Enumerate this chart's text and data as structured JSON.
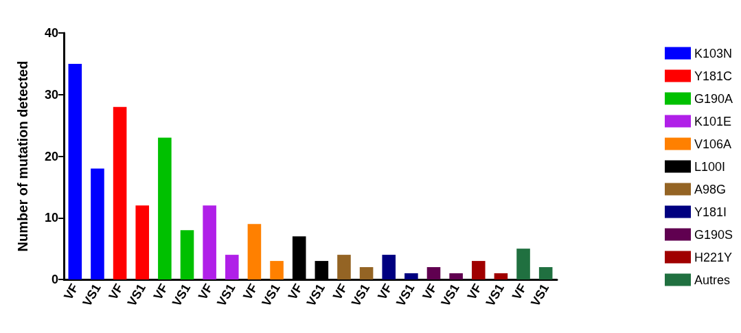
{
  "chart_data": {
    "type": "bar",
    "ylabel": "Number of mutation detected",
    "categories": [
      "VF",
      "VS1",
      "VF",
      "VS1",
      "VF",
      "VS1",
      "VF",
      "VS1",
      "VF",
      "VS1",
      "VF",
      "VS1",
      "VF",
      "VS1",
      "VF",
      "VS1",
      "VF",
      "VS1",
      "VF",
      "VS1",
      "VF",
      "VS1"
    ],
    "stacked": true,
    "ylim": [
      0,
      40
    ],
    "yticks": [
      0,
      10,
      20,
      30,
      40
    ],
    "grid": false,
    "legend": "right",
    "series": [
      {
        "name": "K103N",
        "color": "#0000ff",
        "values": [
          35,
          18,
          null,
          null,
          null,
          null,
          null,
          null,
          null,
          null,
          null,
          null,
          null,
          null,
          null,
          null,
          null,
          null,
          null,
          null,
          null,
          null
        ]
      },
      {
        "name": "Y181C",
        "color": "#ff0000",
        "values": [
          null,
          null,
          28,
          12,
          null,
          null,
          null,
          null,
          null,
          null,
          null,
          null,
          null,
          null,
          null,
          null,
          null,
          null,
          null,
          null,
          null,
          null
        ]
      },
      {
        "name": "G190A",
        "color": "#00c000",
        "values": [
          null,
          null,
          null,
          null,
          23,
          8,
          null,
          null,
          null,
          null,
          null,
          null,
          null,
          null,
          null,
          null,
          null,
          null,
          null,
          null,
          null,
          null
        ]
      },
      {
        "name": "K101E",
        "color": "#b020e8",
        "values": [
          null,
          null,
          null,
          null,
          null,
          null,
          12,
          4,
          null,
          null,
          null,
          null,
          null,
          null,
          null,
          null,
          null,
          null,
          null,
          null,
          null,
          null
        ]
      },
      {
        "name": "V106A",
        "color": "#ff8000",
        "values": [
          null,
          null,
          null,
          null,
          null,
          null,
          null,
          null,
          9,
          3,
          null,
          null,
          null,
          null,
          null,
          null,
          null,
          null,
          null,
          null,
          null,
          null
        ]
      },
      {
        "name": "L100I",
        "color": "#000000",
        "values": [
          null,
          null,
          null,
          null,
          null,
          null,
          null,
          null,
          null,
          null,
          7,
          3,
          null,
          null,
          null,
          null,
          null,
          null,
          null,
          null,
          null,
          null
        ]
      },
      {
        "name": "A98G",
        "color": "#946424",
        "values": [
          null,
          null,
          null,
          null,
          null,
          null,
          null,
          null,
          null,
          null,
          null,
          null,
          4,
          2,
          null,
          null,
          null,
          null,
          null,
          null,
          null,
          null
        ]
      },
      {
        "name": "Y181I",
        "color": "#000080",
        "values": [
          null,
          null,
          null,
          null,
          null,
          null,
          null,
          null,
          null,
          null,
          null,
          null,
          null,
          null,
          4,
          1,
          null,
          null,
          null,
          null,
          null,
          null
        ]
      },
      {
        "name": "G190S",
        "color": "#600050",
        "values": [
          null,
          null,
          null,
          null,
          null,
          null,
          null,
          null,
          null,
          null,
          null,
          null,
          null,
          null,
          null,
          null,
          2,
          1,
          null,
          null,
          null,
          null
        ]
      },
      {
        "name": "H221Y",
        "color": "#a00000",
        "values": [
          null,
          null,
          null,
          null,
          null,
          null,
          null,
          null,
          null,
          null,
          null,
          null,
          null,
          null,
          null,
          null,
          null,
          null,
          3,
          1,
          null,
          null
        ]
      },
      {
        "name": "Autres",
        "color": "#207040",
        "values": [
          null,
          null,
          null,
          null,
          null,
          null,
          null,
          null,
          null,
          null,
          null,
          null,
          null,
          null,
          null,
          null,
          null,
          null,
          null,
          null,
          5,
          2
        ]
      }
    ]
  }
}
